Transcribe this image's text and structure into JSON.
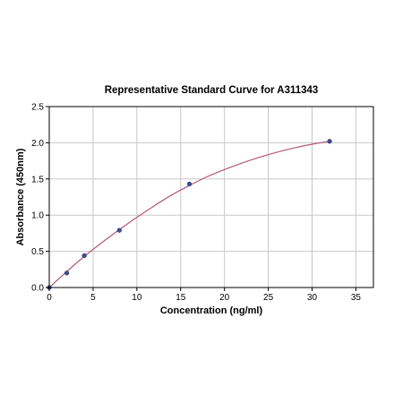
{
  "chart_data": {
    "type": "scatter",
    "title": "Representative Standard Curve for A311343",
    "xlabel": "Concentration (ng/ml)",
    "ylabel": "Absorbance (450nm)",
    "xlim": [
      0,
      37
    ],
    "ylim": [
      0,
      2.5
    ],
    "x_ticks": [
      0,
      5,
      10,
      15,
      20,
      25,
      30,
      35
    ],
    "y_ticks": [
      0.0,
      0.5,
      1.0,
      1.5,
      2.0,
      2.5
    ],
    "x_tick_labels": [
      "0",
      "5",
      "10",
      "15",
      "20",
      "25",
      "30",
      "35"
    ],
    "y_tick_labels": [
      "0.0",
      "0.5",
      "1.0",
      "1.5",
      "2.0",
      "2.5"
    ],
    "grid": true,
    "points": {
      "x": [
        0,
        2,
        4,
        8,
        16,
        32
      ],
      "y": [
        0.0,
        0.2,
        0.44,
        0.79,
        1.43,
        2.02
      ]
    },
    "fit_curve": {
      "type": "smooth",
      "x": [
        0,
        2,
        4,
        6,
        8,
        10,
        12,
        14,
        16,
        18,
        20,
        22,
        24,
        26,
        28,
        30,
        32
      ],
      "y": [
        0.0,
        0.22,
        0.43,
        0.62,
        0.8,
        0.97,
        1.13,
        1.28,
        1.41,
        1.53,
        1.63,
        1.72,
        1.8,
        1.87,
        1.93,
        1.98,
        2.02
      ]
    },
    "colors": {
      "curve": "#b5567a",
      "points": "#3a4e8c",
      "grid": "#c8c8c8"
    }
  }
}
